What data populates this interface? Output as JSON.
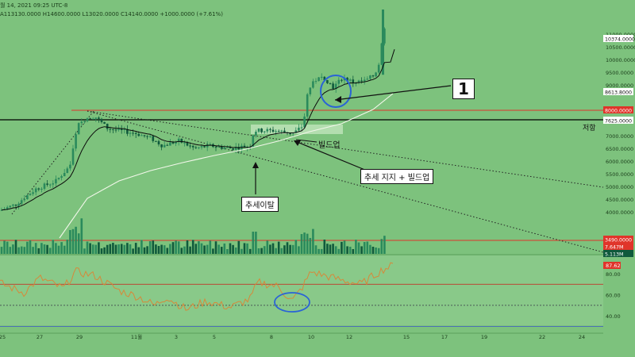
{
  "header": {
    "line1": "월 14, 2021 09:25 UTC-8",
    "line2": "A113130.0000  H14600.0000  L13020.0000  C14140.0000  +1000.0000 (+7.61%)"
  },
  "annotations": {
    "marker_1": "1",
    "buildup": "빌드업",
    "trend_support": "추세 지지 + 빌드업",
    "trend_break": "추세이탈",
    "resistance": "저항"
  },
  "colors": {
    "background": "#7dc27d",
    "indicator_bg": "#89c989",
    "candle": "#0f5a3c",
    "candle_light": "#2a8a5c",
    "red_line": "#e0342a",
    "black_line": "#000000",
    "white_line": "#f2f7ea",
    "rsi_line": "#d6893a",
    "circle": "#2a63d6"
  },
  "chart_data": {
    "type": "candlestick",
    "y_axis_price": {
      "ticks": [
        "11000.0000",
        "10500.0000",
        "10000.0000",
        "9500.0000",
        "9000.0000",
        "7000.0000",
        "6500.0000",
        "6000.0000",
        "5500.0000",
        "5000.0000",
        "4500.0000",
        "4000.0000"
      ],
      "labels": [
        {
          "text": "10374.0000",
          "style": "white"
        },
        {
          "text": "8613.8000",
          "style": "white"
        },
        {
          "text": "8000.0000",
          "style": "red"
        },
        {
          "text": "7625.0000",
          "style": "white"
        },
        {
          "text": "3490.0000",
          "style": "red"
        },
        {
          "text": "7.647M",
          "style": "red"
        },
        {
          "text": "5.113M",
          "style": "dark"
        }
      ],
      "range": [
        3500,
        11200
      ]
    },
    "y_axis_rsi": {
      "ticks": [
        "80.00",
        "60.00",
        "40.00"
      ],
      "current": "87.62"
    },
    "x_axis": {
      "ticks": [
        "25",
        "27",
        "29",
        "11월",
        "3",
        "5",
        "8",
        "10",
        "12",
        "15",
        "17",
        "19",
        "22",
        "24"
      ]
    },
    "levels": {
      "resistance_red": 8000,
      "resistance_black": 7625,
      "volume_red_line": 3490
    }
  }
}
